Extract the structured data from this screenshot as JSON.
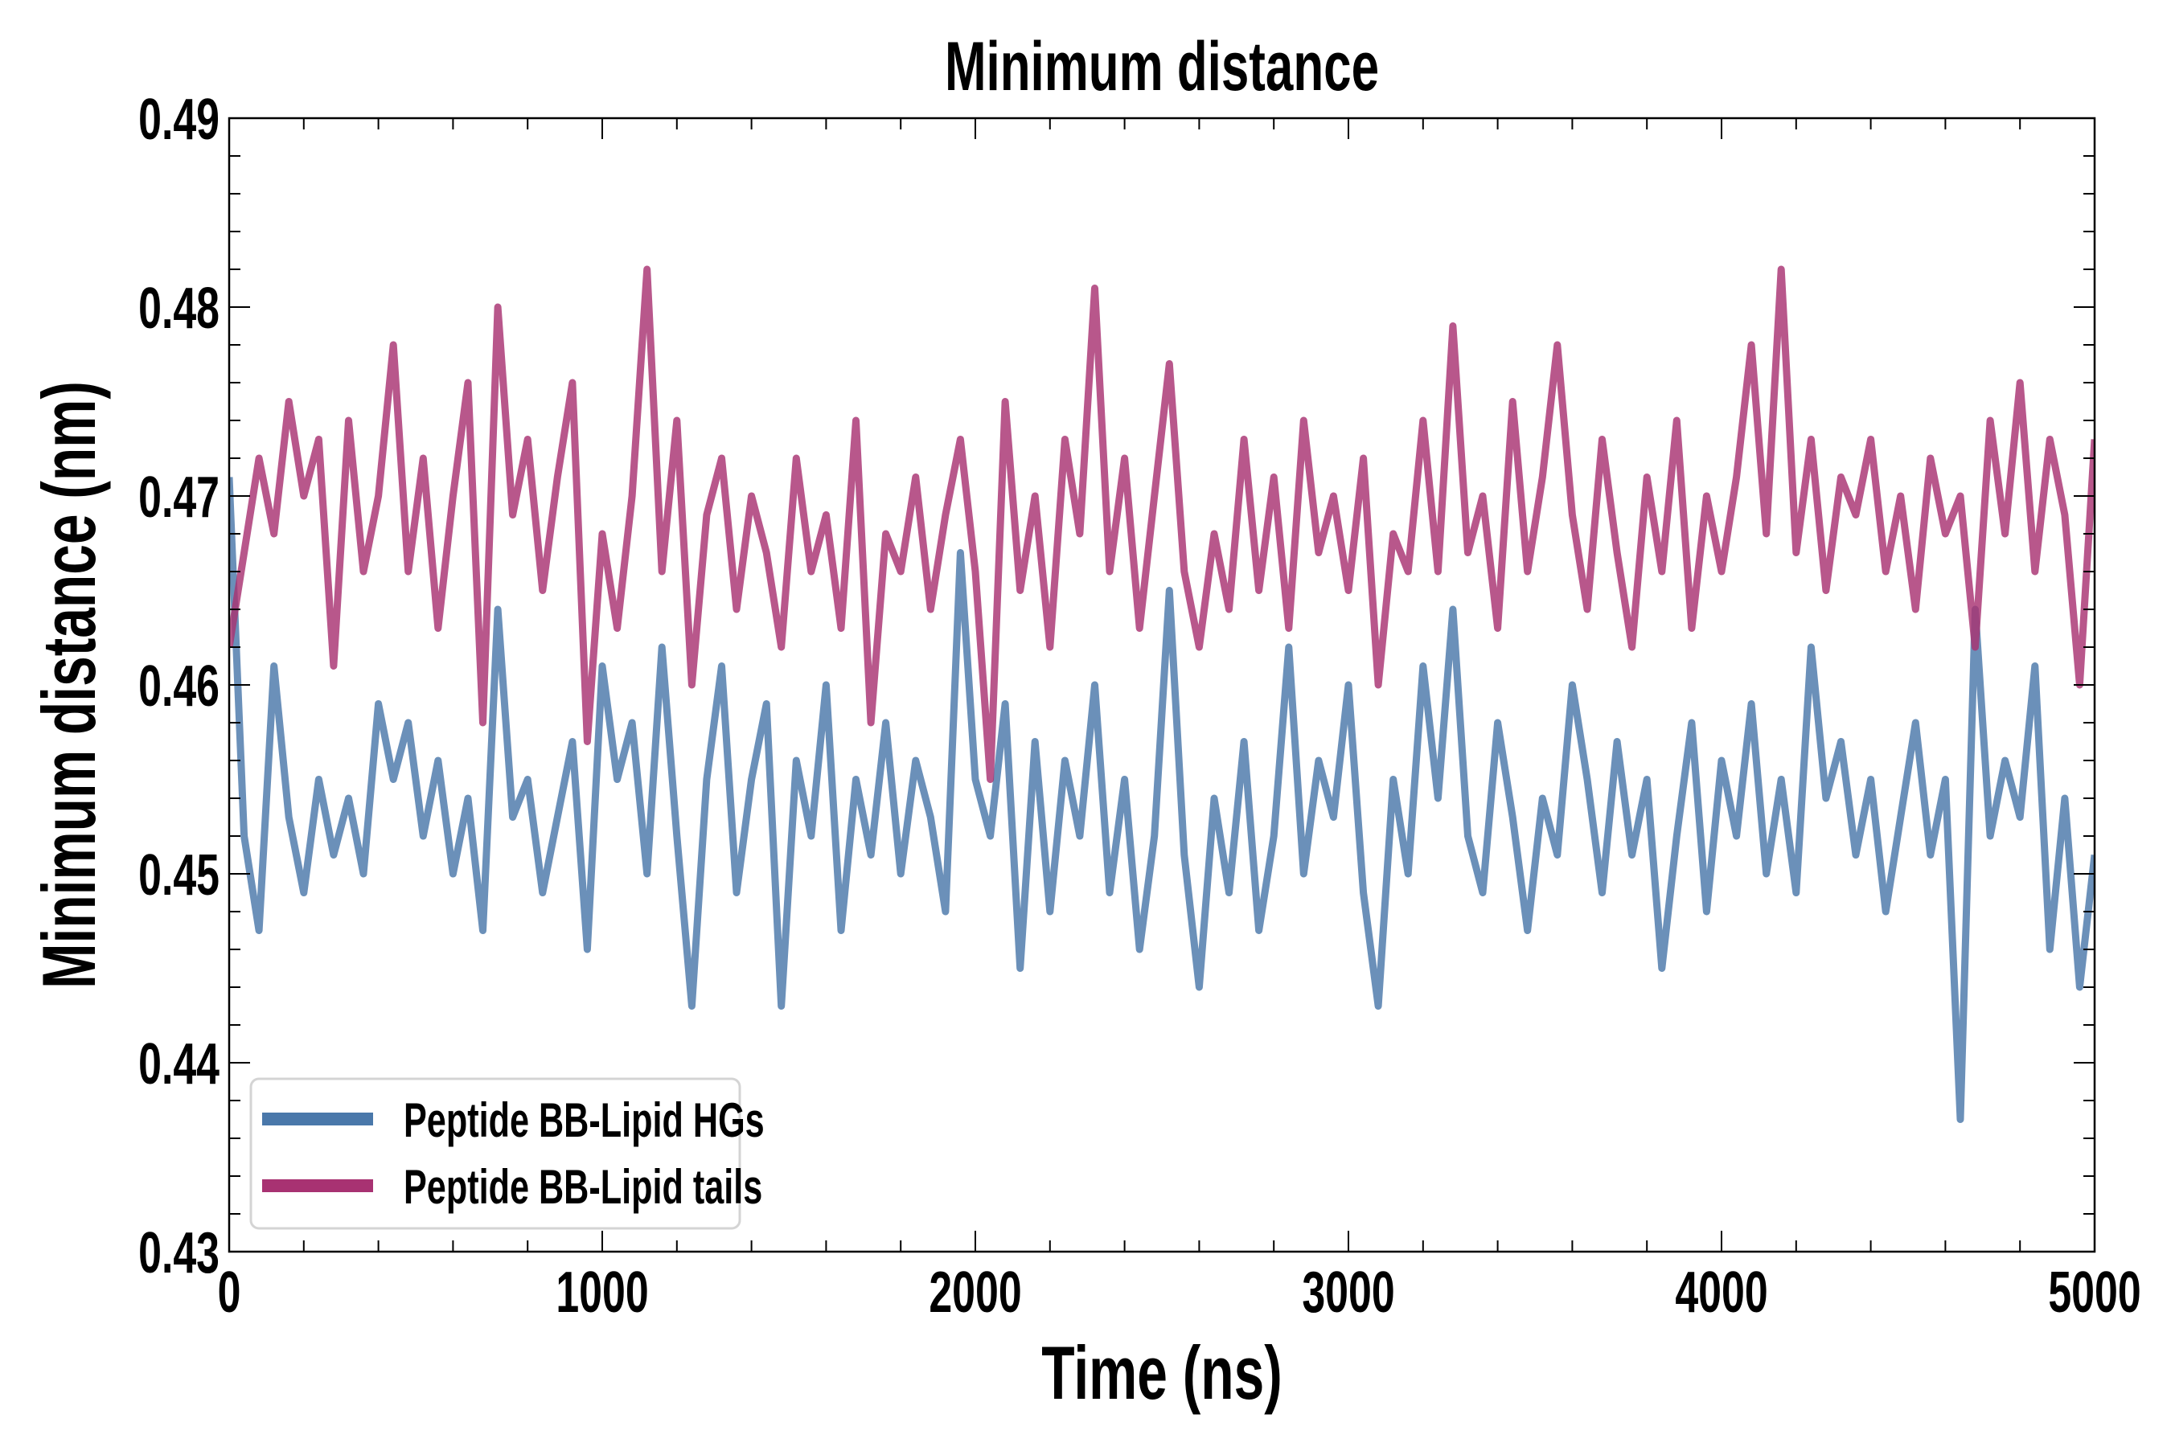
{
  "chart_data": {
    "type": "line",
    "title": "Minimum distance",
    "xlabel": "Time (ns)",
    "ylabel": "Minimum distance (nm)",
    "xlim": [
      0,
      5000
    ],
    "ylim": [
      0.43,
      0.49
    ],
    "xticks": [
      0,
      1000,
      2000,
      3000,
      4000,
      5000
    ],
    "xtick_labels": [
      "0",
      "1000",
      "2000",
      "3000",
      "4000",
      "5000"
    ],
    "yticks": [
      0.43,
      0.44,
      0.45,
      0.46,
      0.47,
      0.48,
      0.49
    ],
    "ytick_labels": [
      "0.43",
      "0.44",
      "0.45",
      "0.46",
      "0.47",
      "0.48",
      "0.49"
    ],
    "grid": false,
    "legend_position": "bottom-left",
    "x_step": 40,
    "series": [
      {
        "name": "Peptide BB-Lipid HGs",
        "color": "#4a78aa",
        "values": [
          0.471,
          0.452,
          0.447,
          0.461,
          0.453,
          0.449,
          0.455,
          0.451,
          0.454,
          0.45,
          0.459,
          0.455,
          0.458,
          0.452,
          0.456,
          0.45,
          0.454,
          0.447,
          0.464,
          0.453,
          0.455,
          0.449,
          0.453,
          0.457,
          0.446,
          0.461,
          0.455,
          0.458,
          0.45,
          0.462,
          0.452,
          0.443,
          0.455,
          0.461,
          0.449,
          0.455,
          0.459,
          0.443,
          0.456,
          0.452,
          0.46,
          0.447,
          0.455,
          0.451,
          0.458,
          0.45,
          0.456,
          0.453,
          0.448,
          0.467,
          0.455,
          0.452,
          0.459,
          0.445,
          0.457,
          0.448,
          0.456,
          0.452,
          0.46,
          0.449,
          0.455,
          0.446,
          0.452,
          0.465,
          0.451,
          0.444,
          0.454,
          0.449,
          0.457,
          0.447,
          0.452,
          0.462,
          0.45,
          0.456,
          0.453,
          0.46,
          0.449,
          0.443,
          0.455,
          0.45,
          0.461,
          0.454,
          0.464,
          0.452,
          0.449,
          0.458,
          0.453,
          0.447,
          0.454,
          0.451,
          0.46,
          0.455,
          0.449,
          0.457,
          0.451,
          0.455,
          0.445,
          0.452,
          0.458,
          0.448,
          0.456,
          0.452,
          0.459,
          0.45,
          0.455,
          0.449,
          0.462,
          0.454,
          0.457,
          0.451,
          0.455,
          0.448,
          0.453,
          0.458,
          0.451,
          0.455,
          0.437,
          0.464,
          0.452,
          0.456,
          0.453,
          0.461,
          0.446,
          0.454,
          0.444,
          0.451
        ]
      },
      {
        "name": "Peptide BB-Lipid tails",
        "color": "#a83272",
        "values": [
          0.462,
          0.467,
          0.472,
          0.468,
          0.475,
          0.47,
          0.473,
          0.461,
          0.474,
          0.466,
          0.47,
          0.478,
          0.466,
          0.472,
          0.463,
          0.47,
          0.476,
          0.458,
          0.48,
          0.469,
          0.473,
          0.465,
          0.471,
          0.476,
          0.457,
          0.468,
          0.463,
          0.47,
          0.482,
          0.466,
          0.474,
          0.46,
          0.469,
          0.472,
          0.464,
          0.47,
          0.467,
          0.462,
          0.472,
          0.466,
          0.469,
          0.463,
          0.474,
          0.458,
          0.468,
          0.466,
          0.471,
          0.464,
          0.469,
          0.473,
          0.466,
          0.455,
          0.475,
          0.465,
          0.47,
          0.462,
          0.473,
          0.468,
          0.481,
          0.466,
          0.472,
          0.463,
          0.47,
          0.477,
          0.466,
          0.462,
          0.468,
          0.464,
          0.473,
          0.465,
          0.471,
          0.463,
          0.474,
          0.467,
          0.47,
          0.465,
          0.472,
          0.46,
          0.468,
          0.466,
          0.474,
          0.466,
          0.479,
          0.467,
          0.47,
          0.463,
          0.475,
          0.466,
          0.471,
          0.478,
          0.469,
          0.464,
          0.473,
          0.467,
          0.462,
          0.471,
          0.466,
          0.474,
          0.463,
          0.47,
          0.466,
          0.471,
          0.478,
          0.468,
          0.482,
          0.467,
          0.473,
          0.465,
          0.471,
          0.469,
          0.473,
          0.466,
          0.47,
          0.464,
          0.472,
          0.468,
          0.47,
          0.462,
          0.474,
          0.468,
          0.476,
          0.466,
          0.473,
          0.469,
          0.46,
          0.473
        ]
      }
    ]
  }
}
